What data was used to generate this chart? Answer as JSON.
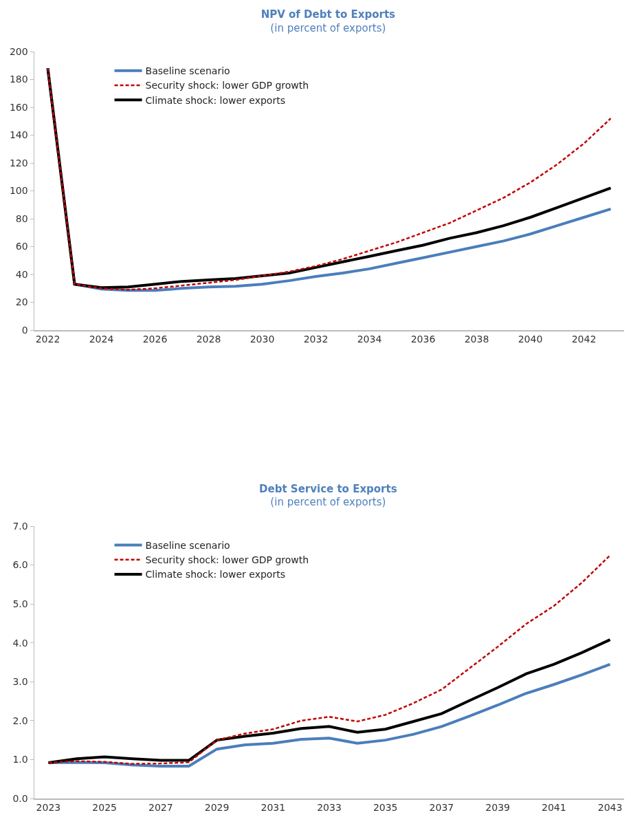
{
  "chart_data": [
    {
      "type": "line",
      "title": "NPV of Debt to Exports",
      "subtitle": "(in percent of exports)",
      "x": [
        2022,
        2023,
        2024,
        2025,
        2026,
        2027,
        2028,
        2029,
        2030,
        2031,
        2032,
        2033,
        2034,
        2035,
        2036,
        2037,
        2038,
        2039,
        2040,
        2041,
        2042,
        2043
      ],
      "series": [
        {
          "name": "Baseline scenario",
          "color": "#4a7ebb",
          "line_style": "solid",
          "values": [
            188,
            33,
            29.5,
            28.5,
            28.5,
            30,
            31,
            31.5,
            33,
            35.5,
            38.5,
            41,
            44,
            48,
            52,
            56,
            60,
            64,
            69,
            75,
            81,
            87
          ]
        },
        {
          "name": "Security shock: lower GDP growth",
          "color": "#c00000",
          "line_style": "dashed",
          "values": [
            188,
            33,
            30,
            29,
            30,
            32,
            34,
            36,
            39,
            42,
            46,
            51,
            57,
            63,
            70,
            77,
            86,
            95,
            106,
            119,
            134,
            152
          ]
        },
        {
          "name": "Climate shock: lower exports",
          "color": "#000000",
          "line_style": "solid",
          "values": [
            188,
            33,
            30.5,
            31,
            33,
            35,
            36,
            37,
            39,
            41,
            45,
            49,
            53,
            57,
            61,
            66,
            70,
            75,
            81,
            88,
            95,
            102
          ]
        }
      ],
      "xlim": [
        2021.5,
        2043.5
      ],
      "xticks": [
        2022,
        2024,
        2026,
        2028,
        2030,
        2032,
        2034,
        2036,
        2038,
        2040,
        2042
      ],
      "ylim": [
        0,
        200
      ],
      "yticks": [
        0,
        20,
        40,
        60,
        80,
        100,
        120,
        140,
        160,
        180,
        200
      ],
      "grid": false,
      "legend": "top left",
      "marker": "none"
    },
    {
      "type": "line",
      "title": "Debt Service to Exports",
      "subtitle": "(in percent of exports)",
      "x": [
        2023,
        2024,
        2025,
        2026,
        2027,
        2028,
        2029,
        2030,
        2031,
        2032,
        2033,
        2034,
        2035,
        2036,
        2037,
        2038,
        2039,
        2040,
        2041,
        2042,
        2043
      ],
      "series": [
        {
          "name": "Baseline scenario",
          "color": "#4a7ebb",
          "line_style": "solid",
          "values": [
            0.92,
            0.93,
            0.92,
            0.86,
            0.83,
            0.83,
            1.27,
            1.38,
            1.42,
            1.52,
            1.55,
            1.42,
            1.5,
            1.65,
            1.85,
            2.12,
            2.4,
            2.7,
            2.93,
            3.18,
            3.45
          ]
        },
        {
          "name": "Security shock: lower GDP growth",
          "color": "#c00000",
          "line_style": "dashed",
          "values": [
            0.92,
            0.96,
            0.94,
            0.89,
            0.9,
            0.93,
            1.5,
            1.67,
            1.78,
            2.0,
            2.1,
            1.98,
            2.15,
            2.45,
            2.8,
            3.35,
            3.9,
            4.48,
            4.95,
            5.55,
            6.25
          ]
        },
        {
          "name": "Climate shock: lower exports",
          "color": "#000000",
          "line_style": "solid",
          "values": [
            0.92,
            1.02,
            1.07,
            1.02,
            0.98,
            0.98,
            1.5,
            1.6,
            1.68,
            1.8,
            1.85,
            1.7,
            1.78,
            1.98,
            2.18,
            2.52,
            2.85,
            3.2,
            3.45,
            3.75,
            4.08
          ]
        }
      ],
      "xlim": [
        2022.5,
        2043.5
      ],
      "xticks": [
        2023,
        2025,
        2027,
        2029,
        2031,
        2033,
        2035,
        2037,
        2039,
        2041,
        2043
      ],
      "ylim": [
        0,
        7
      ],
      "yticks": [
        {
          "value": 0,
          "label": "0.0"
        },
        {
          "value": 1,
          "label": "1.0"
        },
        {
          "value": 2,
          "label": "2.0"
        },
        {
          "value": 3,
          "label": "3.0"
        },
        {
          "value": 4,
          "label": "4.0"
        },
        {
          "value": 5,
          "label": "5.0"
        },
        {
          "value": 6,
          "label": "6.0"
        },
        {
          "value": 7,
          "label": "7.0"
        }
      ],
      "grid": false,
      "legend": "top left",
      "marker": "none"
    }
  ]
}
